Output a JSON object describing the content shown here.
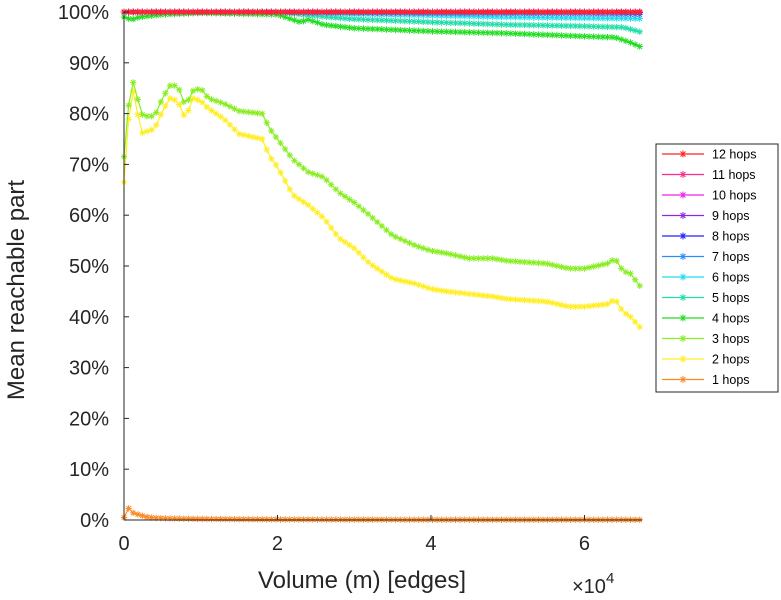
{
  "chart_data": {
    "type": "line",
    "xlabel": "Volume (m) [edges]",
    "ylabel": "Mean reachable part",
    "x_exponent_base": "×10",
    "x_exponent_power": "4",
    "xlim": [
      0,
      67500
    ],
    "ylim": [
      0,
      100
    ],
    "x_ticks": [
      0,
      20000,
      40000,
      60000
    ],
    "x_tick_labels": [
      "0",
      "2",
      "4",
      "6"
    ],
    "y_ticks": [
      0,
      10,
      20,
      30,
      40,
      50,
      60,
      70,
      80,
      90,
      100
    ],
    "y_tick_labels": [
      "0%",
      "10%",
      "20%",
      "30%",
      "40%",
      "50%",
      "60%",
      "70%",
      "80%",
      "90%",
      "100%"
    ],
    "grid": false,
    "legend_position": "right",
    "marker": "asterisk",
    "series": [
      {
        "name": "12 hops",
        "color": "#ff2222",
        "x": [
          0,
          67500
        ],
        "y": [
          100,
          100
        ]
      },
      {
        "name": "11 hops",
        "color": "#ff2a8c",
        "x": [
          0,
          67500
        ],
        "y": [
          100,
          100
        ]
      },
      {
        "name": "10 hops",
        "color": "#ee22ee",
        "x": [
          0,
          67500
        ],
        "y": [
          100,
          100
        ]
      },
      {
        "name": "9 hops",
        "color": "#8a2be2",
        "x": [
          0,
          20000,
          22000,
          67500
        ],
        "y": [
          100,
          100,
          100,
          100
        ]
      },
      {
        "name": "8 hops",
        "color": "#2222ff",
        "x": [
          0,
          20000,
          22000,
          40000,
          60000,
          67500
        ],
        "y": [
          100,
          100,
          100,
          100,
          100,
          99.9
        ]
      },
      {
        "name": "7 hops",
        "color": "#2a8cff",
        "x": [
          0,
          20000,
          22000,
          40000,
          60000,
          67500
        ],
        "y": [
          100,
          100,
          99.9,
          99.8,
          99.7,
          99.5
        ]
      },
      {
        "name": "6 hops",
        "color": "#22ddee",
        "x": [
          0,
          20000,
          22000,
          30000,
          40000,
          50000,
          60000,
          67500
        ],
        "y": [
          100,
          100,
          99.9,
          99.6,
          99.3,
          99.0,
          98.8,
          98.7
        ]
      },
      {
        "name": "5 hops",
        "color": "#22ddaa",
        "x": [
          0,
          20000,
          22000,
          25000,
          30000,
          40000,
          50000,
          60000,
          65000,
          67500
        ],
        "y": [
          100,
          100,
          99.7,
          99.2,
          98.6,
          98.0,
          97.5,
          97.2,
          97.0,
          96.0
        ]
      },
      {
        "name": "4 hops",
        "color": "#22dd22",
        "x": [
          0,
          1000,
          2000,
          5000,
          10000,
          20000,
          22000,
          23000,
          24000,
          26000,
          30000,
          40000,
          50000,
          60000,
          64000,
          66000,
          67500
        ],
        "y": [
          99,
          98.5,
          99,
          99.5,
          99.8,
          99.5,
          98.5,
          98,
          98.5,
          97.5,
          96.8,
          96.2,
          95.8,
          95.2,
          95,
          94,
          93
        ]
      },
      {
        "name": "3 hops",
        "color": "#88ee22",
        "x": [
          0,
          800,
          1500,
          2000,
          3000,
          4000,
          5000,
          6000,
          7000,
          8000,
          9000,
          10000,
          11000,
          13000,
          15000,
          18000,
          19000,
          20000,
          22000,
          24000,
          26000,
          28000,
          30000,
          32000,
          35000,
          38000,
          40000,
          42000,
          45000,
          48000,
          50000,
          55000,
          58000,
          60000,
          63000,
          64000,
          65000,
          66000,
          67500
        ],
        "y": [
          71.5,
          85,
          87,
          80,
          79.5,
          79.5,
          83,
          85.5,
          85.5,
          81.5,
          84.5,
          85,
          83,
          82,
          80.5,
          80,
          77,
          75,
          71,
          68.5,
          67.5,
          64.5,
          62.5,
          60,
          56,
          54,
          53,
          52.5,
          51.5,
          51.5,
          51,
          50.5,
          49.5,
          49.5,
          50.5,
          51.5,
          49,
          48.5,
          45.5
        ]
      },
      {
        "name": "2 hops",
        "color": "#ffee22",
        "x": [
          0,
          800,
          1500,
          2000,
          3000,
          4000,
          5000,
          6000,
          7000,
          8000,
          9000,
          10000,
          11000,
          13000,
          15000,
          18000,
          19000,
          20000,
          22000,
          24000,
          26000,
          28000,
          30000,
          32000,
          35000,
          38000,
          40000,
          42000,
          45000,
          48000,
          50000,
          55000,
          58000,
          60000,
          63000,
          64000,
          65000,
          66000,
          67500
        ],
        "y": [
          66.5,
          83,
          85.5,
          76,
          76.5,
          77,
          80.5,
          83,
          82.5,
          79,
          83,
          82.5,
          81,
          79,
          76,
          75,
          71.5,
          69.5,
          64,
          62,
          59.5,
          55.5,
          53.5,
          50.5,
          47.5,
          46.5,
          45.5,
          45,
          44.5,
          44,
          43.5,
          43,
          42,
          42,
          42.5,
          43.5,
          41,
          40,
          37.5
        ]
      },
      {
        "name": "1 hops",
        "color": "#ff8822",
        "x": [
          0,
          500,
          1000,
          2000,
          3000,
          4000,
          6000,
          10000,
          20000,
          40000,
          60000,
          67500
        ],
        "y": [
          0.5,
          2.5,
          1.5,
          1.0,
          0.6,
          0.4,
          0.3,
          0.2,
          0.1,
          0.05,
          0.05,
          0.05
        ]
      }
    ]
  }
}
